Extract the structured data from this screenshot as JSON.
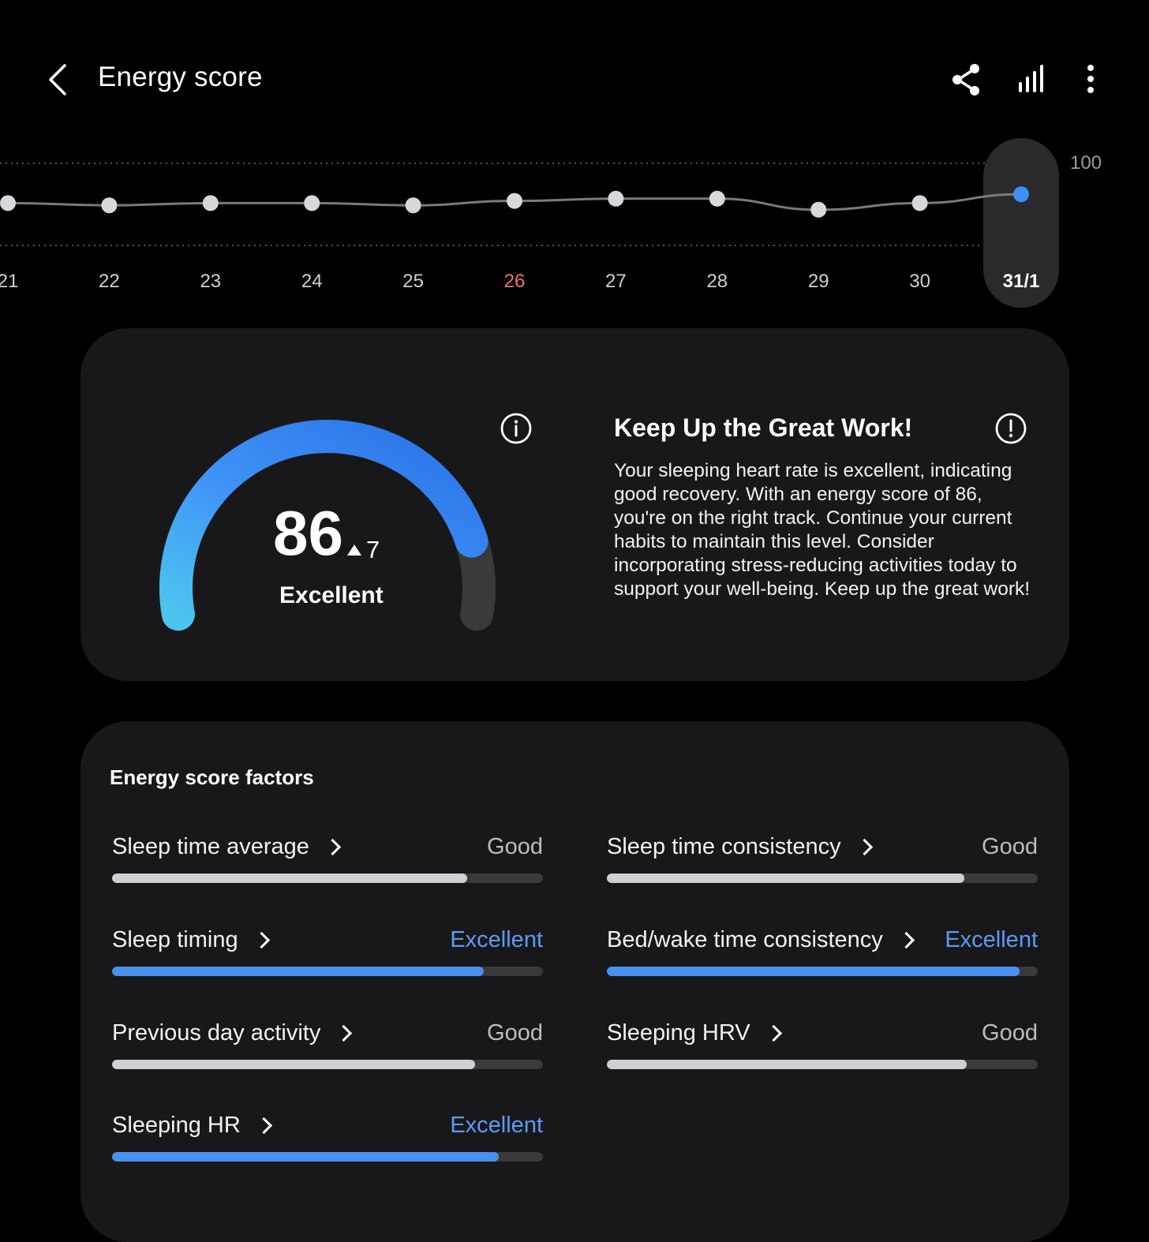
{
  "header": {
    "title": "Energy score",
    "icons": [
      "back-arrow-icon",
      "share-icon",
      "bar-chart-icon",
      "more-vertical-icon"
    ]
  },
  "trend": {
    "max_label": "100",
    "days": [
      "21",
      "22",
      "23",
      "24",
      "25",
      "26",
      "27",
      "28",
      "29",
      "30",
      "31/1"
    ],
    "scores": [
      82,
      81,
      82,
      82,
      81,
      83,
      84,
      84,
      79,
      82,
      86
    ],
    "selected_index": 10,
    "highlight_day_color": "#f07070",
    "highlight_day_index": 5
  },
  "score": {
    "value": "86",
    "delta": "7",
    "label": "Excellent",
    "fraction": 0.86,
    "gradient": [
      "#4cc4ef",
      "#3f92f7",
      "#2a72e6"
    ]
  },
  "advice": {
    "title": "Keep Up the Great Work!",
    "body": "Your sleeping heart rate is excellent, indicating good recovery. With an energy score of 86, you're on the right track. Continue your current habits to maintain this level. Consider incorporating stress-reducing activities today to support your well-being. Keep up the great work!"
  },
  "factors": {
    "title": "Energy score factors",
    "items": [
      {
        "name": "Sleep time average",
        "rating": "Good",
        "level": 0.825,
        "excellent": false
      },
      {
        "name": "Sleep time consistency",
        "rating": "Good",
        "level": 0.83,
        "excellent": false
      },
      {
        "name": "Sleep timing",
        "rating": "Excellent",
        "level": 0.862,
        "excellent": true
      },
      {
        "name": "Bed/wake time consistency",
        "rating": "Excellent",
        "level": 0.958,
        "excellent": true
      },
      {
        "name": "Previous day activity",
        "rating": "Good",
        "level": 0.842,
        "excellent": false
      },
      {
        "name": "Sleeping HRV",
        "rating": "Good",
        "level": 0.835,
        "excellent": false
      },
      {
        "name": "Sleeping HR",
        "rating": "Excellent",
        "level": 0.897,
        "excellent": true
      }
    ]
  }
}
